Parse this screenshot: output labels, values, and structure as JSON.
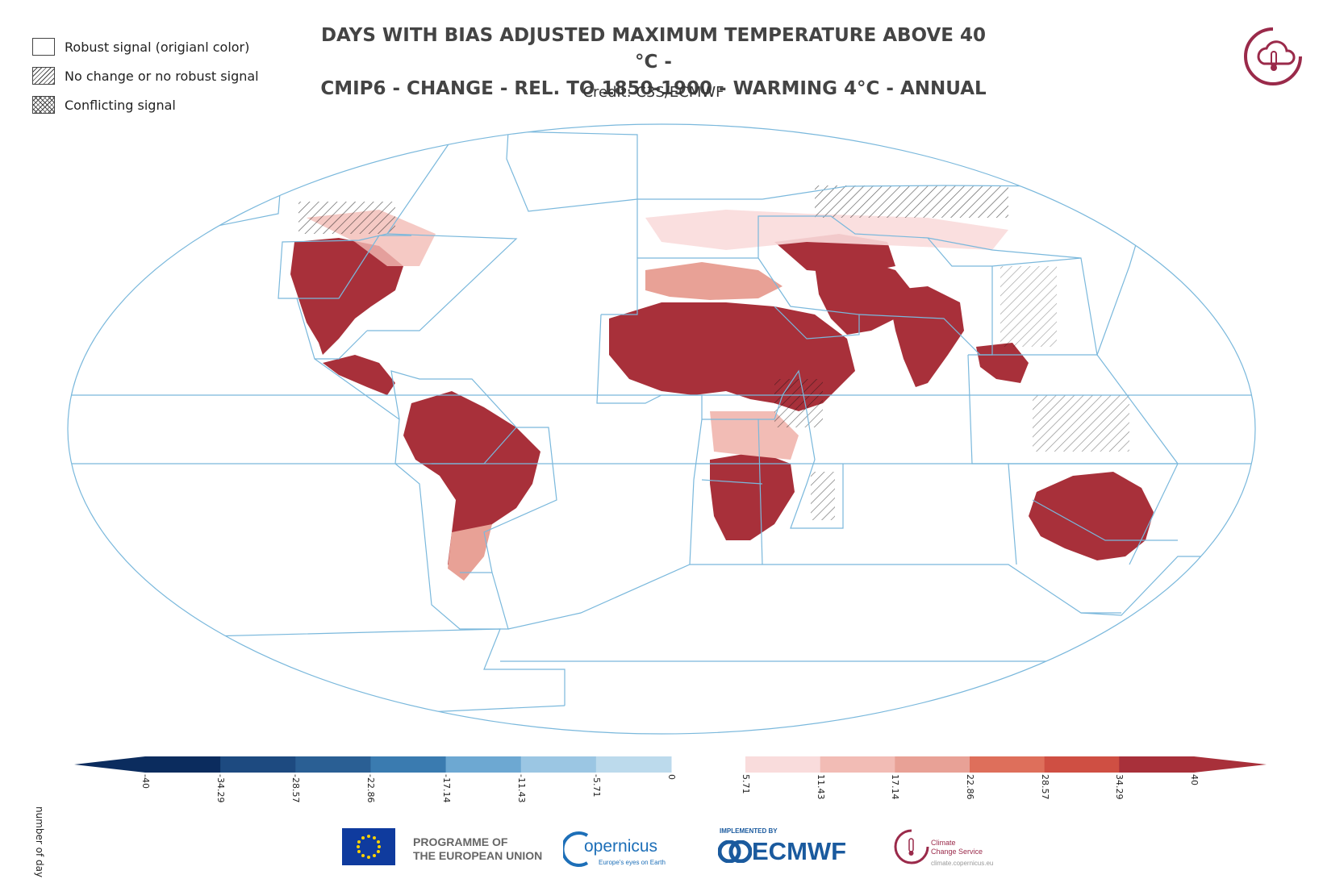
{
  "title_line1": "DAYS WITH BIAS ADJUSTED MAXIMUM TEMPERATURE ABOVE 40 °C -",
  "title_line2": "CMIP6 - CHANGE - REL. TO 1850-1900 - WARMING 4°C - ANNUAL",
  "credit": "Credit: C3S/ECMWF",
  "legend": [
    {
      "label": "Robust signal (origianl color)",
      "pattern": "none"
    },
    {
      "label": "No change or no robust signal",
      "pattern": "hatch"
    },
    {
      "label": "Conflicting signal",
      "pattern": "cross"
    }
  ],
  "colorbar": {
    "unit_label": "number of day",
    "blue_ticks": [
      "-40",
      "-34.29",
      "-28.57",
      "-22.86",
      "-17.14",
      "-11.43",
      "-5.71",
      "0"
    ],
    "red_ticks": [
      "5.71",
      "11.43",
      "17.14",
      "22.86",
      "28.57",
      "34.29",
      "40"
    ],
    "blue_colors": [
      "#0b2c5e",
      "#1d4a80",
      "#2a5f94",
      "#3a7bb0",
      "#6da8d2",
      "#9bc6e3",
      "#bcdaec"
    ],
    "red_colors": [
      "#f9dcdc",
      "#f2bcb5",
      "#e8a196",
      "#de6f5b",
      "#cf4f43",
      "#a8303a"
    ]
  },
  "colors": {
    "strong_warm": "#a8303a",
    "region_outline": "#7ab8dc"
  },
  "footer": {
    "programme_line1": "PROGRAMME OF",
    "programme_line2": "THE EUROPEAN UNION",
    "copernicus": "opernicus",
    "copernicus_tagline": "Europe's eyes on Earth",
    "ecmwf_implemented": "IMPLEMENTED BY",
    "ecmwf": "ECMWF",
    "ccs_line1": "Climate",
    "ccs_line2": "Change Service",
    "ccs_url": "climate.copernicus.eu"
  }
}
